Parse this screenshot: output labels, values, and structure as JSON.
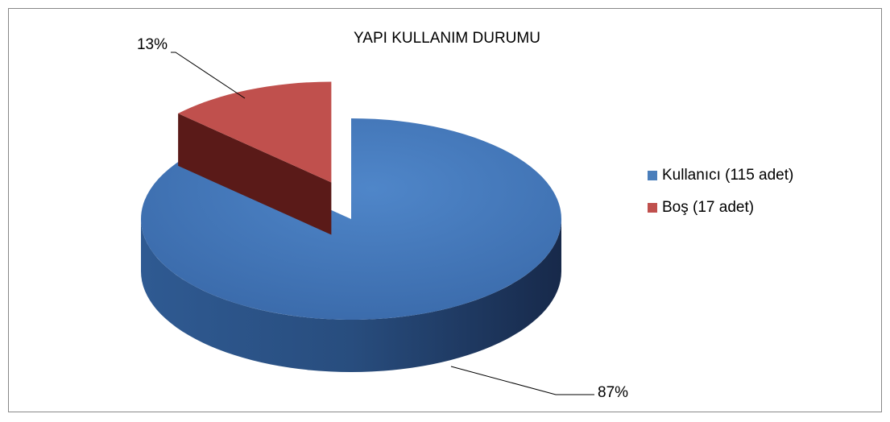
{
  "chart_data": {
    "type": "pie3d",
    "title": "YAPI KULLANIM DURUMU",
    "categories": [
      "Kullanıcı (115 adet)",
      "Boş (17 adet)"
    ],
    "values": [
      87,
      13
    ],
    "value_labels": [
      "87%",
      "13%"
    ],
    "colors": [
      "#4a7ebb",
      "#c0504d"
    ],
    "legend": "right"
  }
}
